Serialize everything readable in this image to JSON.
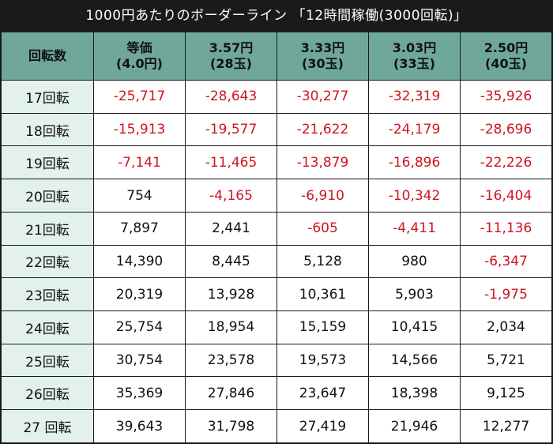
{
  "title": "1000円あたりのボーダーライン 「12時間稼働(3000回転)」",
  "table": {
    "corner": "回転数",
    "columns": [
      {
        "line1": "等価",
        "line2": "(4.0円)"
      },
      {
        "line1": "3.57円",
        "line2": "(28玉)"
      },
      {
        "line1": "3.33円",
        "line2": "(30玉)"
      },
      {
        "line1": "3.03円",
        "line2": "(33玉)"
      },
      {
        "line1": "2.50円",
        "line2": "(40玉)"
      }
    ],
    "rows": [
      {
        "label": "17回転",
        "values": [
          "-25,717",
          "-28,643",
          "-30,277",
          "-32,319",
          "-35,926"
        ]
      },
      {
        "label": "18回転",
        "values": [
          "-15,913",
          "-19,577",
          "-21,622",
          "-24,179",
          "-28,696"
        ]
      },
      {
        "label": "19回転",
        "values": [
          "-7,141",
          "-11,465",
          "-13,879",
          "-16,896",
          "-22,226"
        ]
      },
      {
        "label": "20回転",
        "values": [
          "754",
          "-4,165",
          "-6,910",
          "-10,342",
          "-16,404"
        ]
      },
      {
        "label": "21回転",
        "values": [
          "7,897",
          "2,441",
          "-605",
          "-4,411",
          "-11,136"
        ]
      },
      {
        "label": "22回転",
        "values": [
          "14,390",
          "8,445",
          "5,128",
          "980",
          "-6,347"
        ]
      },
      {
        "label": "23回転",
        "values": [
          "20,319",
          "13,928",
          "10,361",
          "5,903",
          "-1,975"
        ]
      },
      {
        "label": "24回転",
        "values": [
          "25,754",
          "18,954",
          "15,159",
          "10,415",
          "2,034"
        ]
      },
      {
        "label": "25回転",
        "values": [
          "30,754",
          "23,578",
          "19,573",
          "14,566",
          "5,721"
        ]
      },
      {
        "label": "26回転",
        "values": [
          "35,369",
          "27,846",
          "23,647",
          "18,398",
          "9,125"
        ]
      },
      {
        "label": "27 回転",
        "values": [
          "39,643",
          "31,798",
          "27,419",
          "21,946",
          "12,277"
        ]
      }
    ]
  },
  "colors": {
    "header_bg": "#6fa79b",
    "row_label_bg": "#e2f0ee",
    "negative_text": "#d0141f",
    "frame": "#1a1a1a"
  }
}
